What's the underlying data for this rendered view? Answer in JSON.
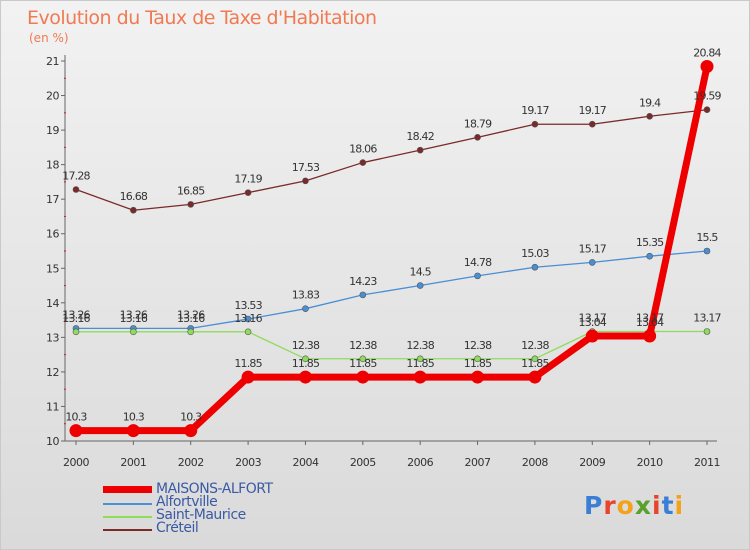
{
  "title": "Evolution du Taux de Taxe d'Habitation",
  "subtitle": "(en %)",
  "logo": {
    "text": "Proxiti",
    "colors": [
      "#3a7fd5",
      "#e8442c",
      "#f2a21b",
      "#5aa02c",
      "#e8442c",
      "#3a7fd5",
      "#f2a21b"
    ]
  },
  "chart_data": {
    "type": "line",
    "title": "Evolution du Taux de Taxe d'Habitation",
    "ylabel": "(en %)",
    "xlabel": "",
    "x": [
      "2000",
      "2001",
      "2002",
      "2003",
      "2004",
      "2005",
      "2006",
      "2007",
      "2008",
      "2009",
      "2010",
      "2011"
    ],
    "ylim": [
      10,
      21
    ],
    "yticks": [
      10,
      11,
      12,
      13,
      14,
      15,
      16,
      17,
      18,
      19,
      20,
      21
    ],
    "grid": false,
    "legend_position": "bottom-left",
    "series": [
      {
        "name": "MAISONS-ALFORT",
        "color": "#ee0000",
        "thick": true,
        "values": [
          10.3,
          10.3,
          10.3,
          11.85,
          11.85,
          11.85,
          11.85,
          11.85,
          11.85,
          13.04,
          13.04,
          20.84
        ],
        "labels": [
          "10.3",
          "10.3",
          "10.3",
          "11.85",
          "11.85",
          "11.85",
          "11.85",
          "11.85",
          "11.85",
          "13.04",
          "13.04",
          "20.84"
        ]
      },
      {
        "name": "Alfortville",
        "color": "#4a8ed6",
        "thick": false,
        "values": [
          13.26,
          13.26,
          13.26,
          13.53,
          13.83,
          14.23,
          14.5,
          14.78,
          15.03,
          15.17,
          15.35,
          15.5
        ],
        "labels": [
          "13.26",
          "13.26",
          "13.26",
          "13.53",
          "13.83",
          "14.23",
          "14.5",
          "14.78",
          "15.03",
          "15.17",
          "15.35",
          "15.5"
        ]
      },
      {
        "name": "Saint-Maurice",
        "color": "#8fdc5c",
        "thick": false,
        "values": [
          13.16,
          13.16,
          13.16,
          13.16,
          12.38,
          12.38,
          12.38,
          12.38,
          12.38,
          13.17,
          13.17,
          13.17
        ],
        "labels": [
          "13.16",
          "13.16",
          "13.16",
          "13.16",
          "12.38",
          "12.38",
          "12.38",
          "12.38",
          "12.38",
          "13.17",
          "13.17",
          "13.17"
        ]
      },
      {
        "name": "Créteil",
        "color": "#7a2a2a",
        "thick": false,
        "values": [
          17.28,
          16.68,
          16.85,
          17.19,
          17.53,
          18.06,
          18.42,
          18.79,
          19.17,
          19.17,
          19.4,
          19.59
        ],
        "labels": [
          "17.28",
          "16.68",
          "16.85",
          "17.19",
          "17.53",
          "18.06",
          "18.42",
          "18.79",
          "19.17",
          "19.17",
          "19.4",
          "19.59"
        ]
      }
    ]
  }
}
